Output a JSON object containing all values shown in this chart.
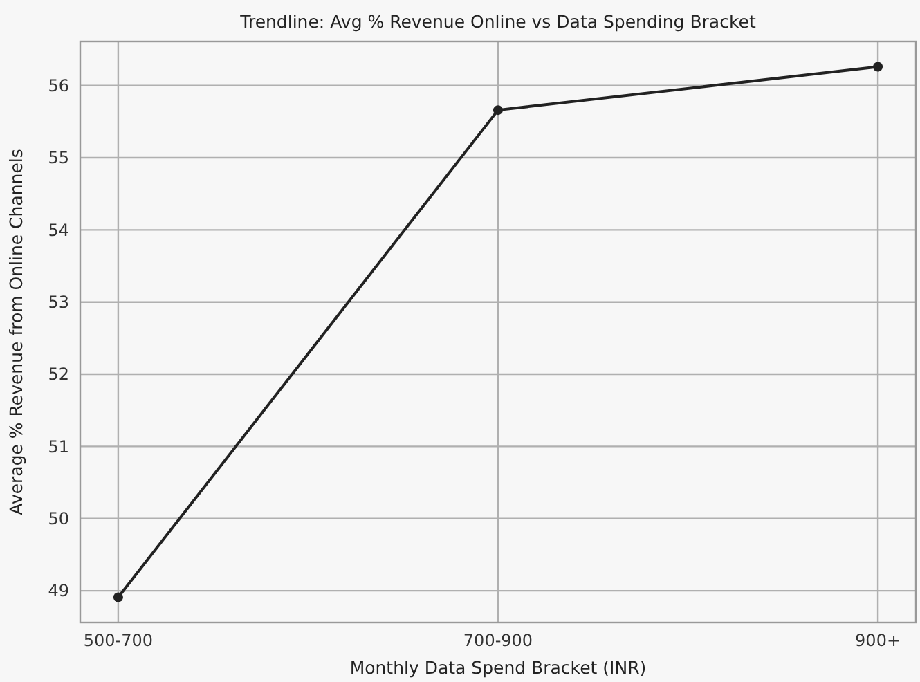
{
  "chart_data": {
    "type": "line",
    "title": "Trendline: Avg % Revenue Online vs Data Spending Bracket",
    "xlabel": "Monthly Data Spend Bracket (INR)",
    "ylabel": "Average % Revenue from Online Channels",
    "categories": [
      "500-700",
      "700-900",
      "900+"
    ],
    "series": [
      {
        "color": "#222222",
        "values": [
          48.91,
          55.66,
          56.26
        ]
      }
    ],
    "ylim": [
      48.56,
      56.61
    ],
    "yticks": [
      49,
      50,
      51,
      52,
      53,
      54,
      55,
      56
    ],
    "grid": true,
    "marker": "circle",
    "line_style": "solid"
  }
}
